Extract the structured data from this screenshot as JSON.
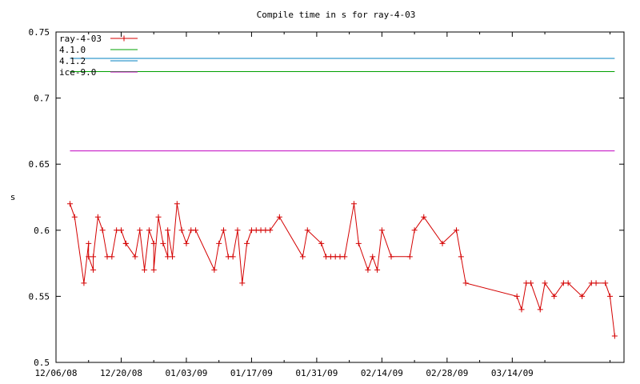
{
  "chart_data": {
    "type": "line",
    "title": "Compile time in s for ray-4-03",
    "ylabel": "s",
    "xlabel": "",
    "ylim": [
      0.5,
      0.75
    ],
    "xlim": [
      "2008-12-06",
      "2009-04-07"
    ],
    "yticks": [
      "0.5",
      "0.55",
      "0.6",
      "0.65",
      "0.7",
      "0.75"
    ],
    "xticks": [
      "12/06/08",
      "12/20/08",
      "01/03/09",
      "01/17/09",
      "01/31/09",
      "02/14/09",
      "02/28/09",
      "03/14/09"
    ],
    "legend_position": "top-left",
    "grid": false,
    "series": [
      {
        "name": "ray-4-03",
        "color": "#d40000",
        "marker": "plus",
        "points": [
          [
            "2008-12-09",
            0.62
          ],
          [
            "2008-12-10",
            0.61
          ],
          [
            "2008-12-12",
            0.56
          ],
          [
            "2008-12-13",
            0.59
          ],
          [
            "2008-12-13",
            0.58
          ],
          [
            "2008-12-14",
            0.57
          ],
          [
            "2008-12-14",
            0.58
          ],
          [
            "2008-12-15",
            0.61
          ],
          [
            "2008-12-16",
            0.6
          ],
          [
            "2008-12-17",
            0.58
          ],
          [
            "2008-12-18",
            0.58
          ],
          [
            "2008-12-19",
            0.6
          ],
          [
            "2008-12-20",
            0.6
          ],
          [
            "2008-12-21",
            0.59
          ],
          [
            "2008-12-21",
            0.59
          ],
          [
            "2008-12-23",
            0.58
          ],
          [
            "2008-12-24",
            0.6
          ],
          [
            "2008-12-25",
            0.57
          ],
          [
            "2008-12-26",
            0.6
          ],
          [
            "2008-12-27",
            0.59
          ],
          [
            "2008-12-27",
            0.57
          ],
          [
            "2008-12-28",
            0.61
          ],
          [
            "2008-12-29",
            0.59
          ],
          [
            "2008-12-30",
            0.58
          ],
          [
            "2008-12-30",
            0.6
          ],
          [
            "2008-12-31",
            0.58
          ],
          [
            "2009-01-01",
            0.62
          ],
          [
            "2009-01-02",
            0.6
          ],
          [
            "2009-01-03",
            0.59
          ],
          [
            "2009-01-04",
            0.6
          ],
          [
            "2009-01-05",
            0.6
          ],
          [
            "2009-01-09",
            0.57
          ],
          [
            "2009-01-10",
            0.59
          ],
          [
            "2009-01-11",
            0.6
          ],
          [
            "2009-01-12",
            0.58
          ],
          [
            "2009-01-13",
            0.58
          ],
          [
            "2009-01-14",
            0.6
          ],
          [
            "2009-01-15",
            0.56
          ],
          [
            "2009-01-16",
            0.59
          ],
          [
            "2009-01-17",
            0.6
          ],
          [
            "2009-01-18",
            0.6
          ],
          [
            "2009-01-19",
            0.6
          ],
          [
            "2009-01-20",
            0.6
          ],
          [
            "2009-01-21",
            0.6
          ],
          [
            "2009-01-23",
            0.61
          ],
          [
            "2009-01-28",
            0.58
          ],
          [
            "2009-01-29",
            0.6
          ],
          [
            "2009-02-01",
            0.59
          ],
          [
            "2009-02-02",
            0.58
          ],
          [
            "2009-02-03",
            0.58
          ],
          [
            "2009-02-04",
            0.58
          ],
          [
            "2009-02-05",
            0.58
          ],
          [
            "2009-02-06",
            0.58
          ],
          [
            "2009-02-08",
            0.62
          ],
          [
            "2009-02-09",
            0.59
          ],
          [
            "2009-02-11",
            0.57
          ],
          [
            "2009-02-12",
            0.58
          ],
          [
            "2009-02-13",
            0.57
          ],
          [
            "2009-02-14",
            0.6
          ],
          [
            "2009-02-16",
            0.58
          ],
          [
            "2009-02-20",
            0.58
          ],
          [
            "2009-02-21",
            0.6
          ],
          [
            "2009-02-23",
            0.61
          ],
          [
            "2009-02-27",
            0.59
          ],
          [
            "2009-03-02",
            0.6
          ],
          [
            "2009-03-03",
            0.58
          ],
          [
            "2009-03-04",
            0.56
          ],
          [
            "2009-03-15",
            0.55
          ],
          [
            "2009-03-16",
            0.54
          ],
          [
            "2009-03-17",
            0.56
          ],
          [
            "2009-03-18",
            0.56
          ],
          [
            "2009-03-20",
            0.54
          ],
          [
            "2009-03-21",
            0.56
          ],
          [
            "2009-03-23",
            0.55
          ],
          [
            "2009-03-25",
            0.56
          ],
          [
            "2009-03-26",
            0.56
          ],
          [
            "2009-03-29",
            0.55
          ],
          [
            "2009-03-31",
            0.56
          ],
          [
            "2009-04-01",
            0.56
          ],
          [
            "2009-04-03",
            0.56
          ],
          [
            "2009-04-04",
            0.55
          ],
          [
            "2009-04-05",
            0.52
          ]
        ]
      },
      {
        "name": "4.1.0",
        "color": "#00a000",
        "constant": 0.72,
        "x_range": [
          "2008-12-09",
          "2009-04-05"
        ]
      },
      {
        "name": "4.1.2",
        "color": "#0080c0",
        "constant": 0.73,
        "x_range": [
          "2008-12-09",
          "2009-04-05"
        ]
      },
      {
        "name": "ice-9.0",
        "color": "#c000c0",
        "constant": 0.66,
        "x_range": [
          "2008-12-09",
          "2009-04-05"
        ]
      }
    ]
  }
}
